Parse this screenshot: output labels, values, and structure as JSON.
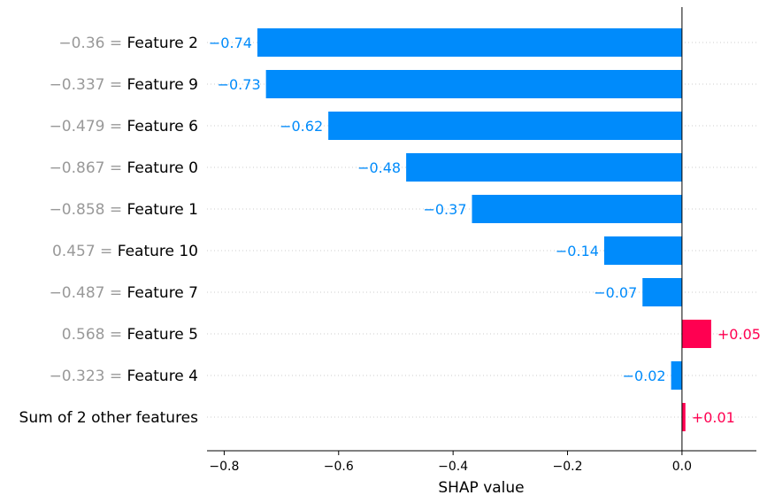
{
  "chart_data": {
    "type": "bar",
    "orientation": "horizontal",
    "xlabel": "SHAP value",
    "xlim": [
      -0.83,
      0.13
    ],
    "xticks": [
      -0.8,
      -0.6,
      -0.4,
      -0.2,
      0.0
    ],
    "xtick_labels": [
      "−0.8",
      "−0.6",
      "−0.4",
      "−0.2",
      "0.0"
    ],
    "grid": "dotted horizontal row guides",
    "colors": {
      "negative": "#008bfb",
      "positive": "#ff0051",
      "value_prefix": "#999999",
      "feature_name": "#000000"
    },
    "rows": [
      {
        "value_text": "−0.36",
        "feature": "Feature 2",
        "shap": -0.742,
        "label": "−0.74"
      },
      {
        "value_text": "−0.337",
        "feature": "Feature 9",
        "shap": -0.727,
        "label": "−0.73"
      },
      {
        "value_text": "−0.479",
        "feature": "Feature 6",
        "shap": -0.618,
        "label": "−0.62"
      },
      {
        "value_text": "−0.867",
        "feature": "Feature 0",
        "shap": -0.482,
        "label": "−0.48"
      },
      {
        "value_text": "−0.858",
        "feature": "Feature 1",
        "shap": -0.367,
        "label": "−0.37"
      },
      {
        "value_text": "0.457",
        "feature": "Feature 10",
        "shap": -0.136,
        "label": "−0.14"
      },
      {
        "value_text": "−0.487",
        "feature": "Feature 7",
        "shap": -0.069,
        "label": "−0.07"
      },
      {
        "value_text": "0.568",
        "feature": "Feature 5",
        "shap": 0.051,
        "label": "+0.05"
      },
      {
        "value_text": "−0.323",
        "feature": "Feature 4",
        "shap": -0.019,
        "label": "−0.02"
      },
      {
        "value_text": "",
        "feature": "Sum of 2 other features",
        "shap": 0.006,
        "label": "+0.01"
      }
    ]
  }
}
